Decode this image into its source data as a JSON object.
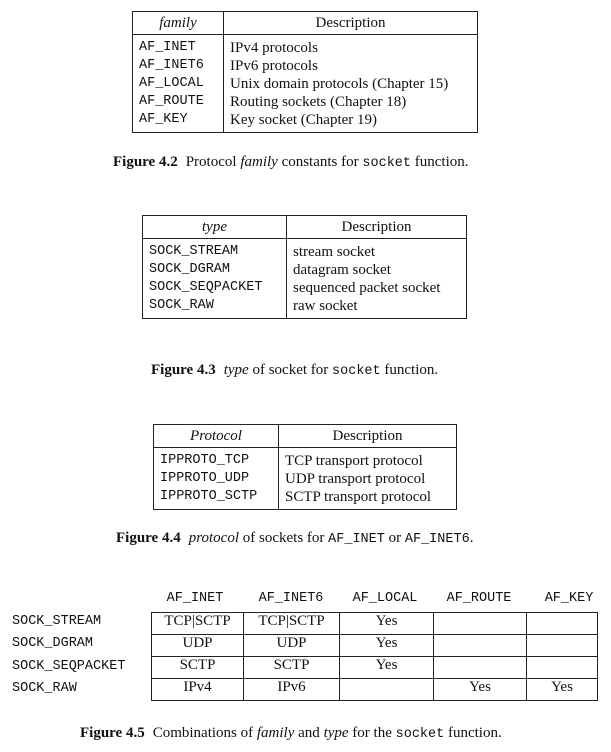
{
  "fig42": {
    "headers": [
      "family",
      "Description"
    ],
    "rows": [
      [
        "AF_INET",
        "IPv4 protocols"
      ],
      [
        "AF_INET6",
        "IPv6 protocols"
      ],
      [
        "AF_LOCAL",
        "Unix domain protocols (Chapter 15)"
      ],
      [
        "AF_ROUTE",
        "Routing sockets (Chapter 18)"
      ],
      [
        "AF_KEY",
        "Key socket (Chapter 19)"
      ]
    ],
    "caption": {
      "label": "Figure 4.2",
      "pre": "Protocol ",
      "em": "family",
      "mid": " constants for ",
      "code": "socket",
      "post": " function."
    }
  },
  "fig43": {
    "headers": [
      "type",
      "Description"
    ],
    "rows": [
      [
        "SOCK_STREAM",
        "stream socket"
      ],
      [
        "SOCK_DGRAM",
        "datagram socket"
      ],
      [
        "SOCK_SEQPACKET",
        "sequenced packet socket"
      ],
      [
        "SOCK_RAW",
        "raw socket"
      ]
    ],
    "caption": {
      "label": "Figure 4.3",
      "pre": "",
      "em": "type",
      "mid": " of socket for ",
      "code": "socket",
      "post": " function."
    }
  },
  "fig44": {
    "headers": [
      "Protocol",
      "Description"
    ],
    "rows": [
      [
        "IPPROTO_TCP",
        "TCP transport protocol"
      ],
      [
        "IPPROTO_UDP",
        "UDP transport protocol"
      ],
      [
        "IPPROTO_SCTP",
        "SCTP transport protocol"
      ]
    ],
    "caption": {
      "label": "Figure 4.4",
      "em": "protocol",
      "mid": " of sockets for ",
      "code1": "AF_INET",
      "or": " or ",
      "code2": "AF_INET6",
      "post": "."
    }
  },
  "fig45": {
    "col_headers": [
      "AF_INET",
      "AF_INET6",
      "AF_LOCAL",
      "AF_ROUTE",
      "AF_KEY"
    ],
    "row_headers": [
      "SOCK_STREAM",
      "SOCK_DGRAM",
      "SOCK_SEQPACKET",
      "SOCK_RAW"
    ],
    "cells": [
      [
        "TCP|SCTP",
        "TCP|SCTP",
        "Yes",
        "",
        ""
      ],
      [
        "UDP",
        "UDP",
        "Yes",
        "",
        ""
      ],
      [
        "SCTP",
        "SCTP",
        "Yes",
        "",
        ""
      ],
      [
        "IPv4",
        "IPv6",
        "",
        "Yes",
        "Yes"
      ]
    ],
    "caption": {
      "label": "Figure 4.5",
      "pre": "Combinations of ",
      "em1": "family",
      "and": " and ",
      "em2": "type",
      "mid": " for the ",
      "code": "socket",
      "post": " function."
    }
  }
}
